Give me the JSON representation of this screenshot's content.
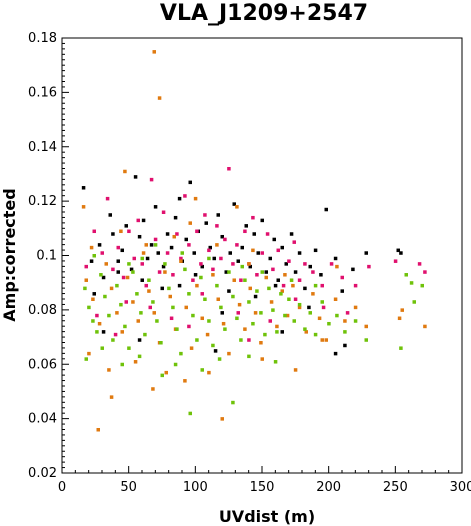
{
  "chart_data": {
    "type": "scatter",
    "title": "VLA_J1209+2547",
    "xlabel": "UVdist (m)",
    "ylabel": "Amp:corrected",
    "xlim": [
      0,
      300
    ],
    "ylim": [
      0.02,
      0.18
    ],
    "x_ticks": [
      "0",
      "50",
      "100",
      "150",
      "200",
      "250",
      "300"
    ],
    "y_ticks": [
      "0.02",
      "0.04",
      "0.06",
      "0.08",
      "0.1",
      "0.12",
      "0.14",
      "0.16",
      "0.18"
    ],
    "grid": false,
    "legend": "none",
    "colors": [
      "#000000",
      "#e0106e",
      "#e07a10",
      "#6fc20a"
    ],
    "series": [
      {
        "color": "#000000",
        "points": [
          [
            16,
            0.125
          ],
          [
            22,
            0.098
          ],
          [
            28,
            0.104
          ],
          [
            31,
            0.092
          ],
          [
            36,
            0.115
          ],
          [
            38,
            0.108
          ],
          [
            42,
            0.098
          ],
          [
            45,
            0.102
          ],
          [
            48,
            0.111
          ],
          [
            52,
            0.095
          ],
          [
            55,
            0.129
          ],
          [
            58,
            0.107
          ],
          [
            61,
            0.113
          ],
          [
            64,
            0.099
          ],
          [
            67,
            0.104
          ],
          [
            70,
            0.118
          ],
          [
            72,
            0.101
          ],
          [
            76,
            0.096
          ],
          [
            79,
            0.108
          ],
          [
            82,
            0.103
          ],
          [
            85,
            0.114
          ],
          [
            88,
            0.121
          ],
          [
            90,
            0.098
          ],
          [
            93,
            0.106
          ],
          [
            96,
            0.127
          ],
          [
            99,
            0.101
          ],
          [
            102,
            0.109
          ],
          [
            105,
            0.096
          ],
          [
            108,
            0.112
          ],
          [
            111,
            0.103
          ],
          [
            114,
            0.099
          ],
          [
            117,
            0.115
          ],
          [
            120,
            0.107
          ],
          [
            123,
            0.094
          ],
          [
            126,
            0.101
          ],
          [
            129,
            0.119
          ],
          [
            132,
            0.098
          ],
          [
            135,
            0.103
          ],
          [
            138,
            0.111
          ],
          [
            141,
            0.096
          ],
          [
            144,
            0.108
          ],
          [
            147,
            0.101
          ],
          [
            150,
            0.113
          ],
          [
            153,
            0.094
          ],
          [
            156,
            0.099
          ],
          [
            159,
            0.106
          ],
          [
            162,
            0.091
          ],
          [
            165,
            0.103
          ],
          [
            168,
            0.097
          ],
          [
            172,
            0.108
          ],
          [
            175,
            0.094
          ],
          [
            178,
            0.101
          ],
          [
            182,
            0.088
          ],
          [
            186,
            0.096
          ],
          [
            190,
            0.102
          ],
          [
            194,
            0.093
          ],
          [
            198,
            0.117
          ],
          [
            205,
            0.099
          ],
          [
            210,
            0.087
          ],
          [
            218,
            0.095
          ],
          [
            228,
            0.101
          ],
          [
            252,
            0.102
          ],
          [
            254,
            0.101
          ],
          [
            31,
            0.072
          ],
          [
            58,
            0.069
          ],
          [
            120,
            0.079
          ],
          [
            145,
            0.085
          ],
          [
            185,
            0.081
          ],
          [
            212,
            0.067
          ],
          [
            115,
            0.065
          ],
          [
            60,
            0.091
          ],
          [
            75,
            0.088
          ],
          [
            100,
            0.093
          ],
          [
            125,
            0.087
          ],
          [
            160,
            0.089
          ],
          [
            205,
            0.064
          ],
          [
            24,
            0.086
          ],
          [
            42,
            0.094
          ],
          [
            88,
            0.089
          ],
          [
            165,
            0.072
          ]
        ]
      },
      {
        "color": "#e0106e",
        "points": [
          [
            18,
            0.096
          ],
          [
            24,
            0.109
          ],
          [
            30,
            0.101
          ],
          [
            34,
            0.121
          ],
          [
            38,
            0.095
          ],
          [
            42,
            0.103
          ],
          [
            46,
            0.092
          ],
          [
            50,
            0.109
          ],
          [
            54,
            0.099
          ],
          [
            57,
            0.113
          ],
          [
            60,
            0.097
          ],
          [
            63,
            0.089
          ],
          [
            67,
            0.128
          ],
          [
            70,
            0.106
          ],
          [
            73,
            0.094
          ],
          [
            76,
            0.116
          ],
          [
            79,
            0.101
          ],
          [
            83,
            0.093
          ],
          [
            86,
            0.108
          ],
          [
            89,
            0.099
          ],
          [
            92,
            0.122
          ],
          [
            95,
            0.104
          ],
          [
            98,
            0.091
          ],
          [
            101,
            0.109
          ],
          [
            104,
            0.097
          ],
          [
            107,
            0.115
          ],
          [
            110,
            0.102
          ],
          [
            113,
            0.095
          ],
          [
            116,
            0.111
          ],
          [
            119,
            0.099
          ],
          [
            122,
            0.106
          ],
          [
            125,
            0.132
          ],
          [
            128,
            0.097
          ],
          [
            131,
            0.104
          ],
          [
            134,
            0.091
          ],
          [
            137,
            0.109
          ],
          [
            140,
            0.097
          ],
          [
            143,
            0.114
          ],
          [
            146,
            0.093
          ],
          [
            150,
            0.101
          ],
          [
            154,
            0.108
          ],
          [
            158,
            0.095
          ],
          [
            162,
            0.102
          ],
          [
            166,
            0.089
          ],
          [
            170,
            0.098
          ],
          [
            174,
            0.105
          ],
          [
            178,
            0.091
          ],
          [
            182,
            0.097
          ],
          [
            188,
            0.094
          ],
          [
            195,
            0.089
          ],
          [
            202,
            0.097
          ],
          [
            210,
            0.092
          ],
          [
            220,
            0.089
          ],
          [
            230,
            0.096
          ],
          [
            26,
            0.078
          ],
          [
            48,
            0.083
          ],
          [
            66,
            0.081
          ],
          [
            82,
            0.077
          ],
          [
            105,
            0.086
          ],
          [
            132,
            0.079
          ],
          [
            156,
            0.076
          ],
          [
            175,
            0.084
          ],
          [
            196,
            0.081
          ],
          [
            214,
            0.079
          ],
          [
            250,
            0.098
          ],
          [
            268,
            0.097
          ],
          [
            272,
            0.094
          ],
          [
            40,
            0.071
          ],
          [
            95,
            0.074
          ],
          [
            140,
            0.069
          ]
        ]
      },
      {
        "color": "#e07a10",
        "points": [
          [
            69,
            0.175
          ],
          [
            73,
            0.158
          ],
          [
            27,
            0.036
          ],
          [
            37,
            0.048
          ],
          [
            68,
            0.051
          ],
          [
            120,
            0.04
          ],
          [
            16,
            0.118
          ],
          [
            47,
            0.131
          ],
          [
            100,
            0.121
          ],
          [
            131,
            0.118
          ],
          [
            18,
            0.091
          ],
          [
            23,
            0.084
          ],
          [
            28,
            0.075
          ],
          [
            33,
            0.097
          ],
          [
            37,
            0.088
          ],
          [
            41,
            0.079
          ],
          [
            45,
            0.072
          ],
          [
            49,
            0.092
          ],
          [
            53,
            0.083
          ],
          [
            57,
            0.076
          ],
          [
            61,
            0.101
          ],
          [
            65,
            0.087
          ],
          [
            69,
            0.079
          ],
          [
            73,
            0.068
          ],
          [
            77,
            0.094
          ],
          [
            81,
            0.085
          ],
          [
            85,
            0.073
          ],
          [
            89,
            0.098
          ],
          [
            93,
            0.081
          ],
          [
            97,
            0.066
          ],
          [
            101,
            0.089
          ],
          [
            105,
            0.077
          ],
          [
            109,
            0.071
          ],
          [
            113,
            0.093
          ],
          [
            117,
            0.084
          ],
          [
            121,
            0.075
          ],
          [
            125,
            0.064
          ],
          [
            129,
            0.091
          ],
          [
            133,
            0.082
          ],
          [
            137,
            0.073
          ],
          [
            141,
            0.088
          ],
          [
            145,
            0.079
          ],
          [
            149,
            0.068
          ],
          [
            153,
            0.092
          ],
          [
            157,
            0.083
          ],
          [
            161,
            0.074
          ],
          [
            165,
            0.087
          ],
          [
            169,
            0.078
          ],
          [
            173,
            0.089
          ],
          [
            178,
            0.081
          ],
          [
            183,
            0.072
          ],
          [
            188,
            0.086
          ],
          [
            193,
            0.077
          ],
          [
            198,
            0.069
          ],
          [
            205,
            0.084
          ],
          [
            212,
            0.076
          ],
          [
            220,
            0.081
          ],
          [
            228,
            0.074
          ],
          [
            253,
            0.077
          ],
          [
            255,
            0.08
          ],
          [
            272,
            0.074
          ],
          [
            20,
            0.064
          ],
          [
            35,
            0.058
          ],
          [
            55,
            0.061
          ],
          [
            78,
            0.057
          ],
          [
            92,
            0.054
          ],
          [
            110,
            0.057
          ],
          [
            150,
            0.062
          ],
          [
            175,
            0.058
          ],
          [
            195,
            0.069
          ],
          [
            63,
            0.104
          ],
          [
            84,
            0.107
          ],
          [
            116,
            0.104
          ],
          [
            143,
            0.102
          ],
          [
            22,
            0.103
          ],
          [
            44,
            0.109
          ],
          [
            96,
            0.112
          ],
          [
            140,
            0.097
          ],
          [
            167,
            0.093
          ],
          [
            206,
            0.096
          ]
        ]
      },
      {
        "color": "#6fc20a",
        "points": [
          [
            17,
            0.088
          ],
          [
            20,
            0.081
          ],
          [
            23,
            0.076
          ],
          [
            26,
            0.072
          ],
          [
            29,
            0.093
          ],
          [
            32,
            0.085
          ],
          [
            35,
            0.078
          ],
          [
            38,
            0.069
          ],
          [
            41,
            0.089
          ],
          [
            44,
            0.082
          ],
          [
            47,
            0.074
          ],
          [
            50,
            0.066
          ],
          [
            53,
            0.094
          ],
          [
            56,
            0.086
          ],
          [
            59,
            0.079
          ],
          [
            62,
            0.071
          ],
          [
            65,
            0.091
          ],
          [
            68,
            0.083
          ],
          [
            71,
            0.076
          ],
          [
            74,
            0.068
          ],
          [
            77,
            0.097
          ],
          [
            80,
            0.088
          ],
          [
            83,
            0.081
          ],
          [
            86,
            0.073
          ],
          [
            89,
            0.064
          ],
          [
            92,
            0.095
          ],
          [
            95,
            0.086
          ],
          [
            98,
            0.078
          ],
          [
            101,
            0.069
          ],
          [
            104,
            0.092
          ],
          [
            107,
            0.084
          ],
          [
            110,
            0.076
          ],
          [
            113,
            0.067
          ],
          [
            116,
            0.089
          ],
          [
            119,
            0.081
          ],
          [
            122,
            0.073
          ],
          [
            125,
            0.094
          ],
          [
            128,
            0.085
          ],
          [
            131,
            0.077
          ],
          [
            134,
            0.069
          ],
          [
            137,
            0.091
          ],
          [
            140,
            0.083
          ],
          [
            143,
            0.075
          ],
          [
            146,
            0.087
          ],
          [
            149,
            0.079
          ],
          [
            152,
            0.071
          ],
          [
            155,
            0.088
          ],
          [
            158,
            0.08
          ],
          [
            161,
            0.072
          ],
          [
            164,
            0.086
          ],
          [
            167,
            0.078
          ],
          [
            170,
            0.084
          ],
          [
            174,
            0.076
          ],
          [
            178,
            0.082
          ],
          [
            182,
            0.073
          ],
          [
            186,
            0.079
          ],
          [
            190,
            0.071
          ],
          [
            195,
            0.083
          ],
          [
            200,
            0.075
          ],
          [
            206,
            0.078
          ],
          [
            212,
            0.072
          ],
          [
            220,
            0.076
          ],
          [
            228,
            0.069
          ],
          [
            254,
            0.066
          ],
          [
            258,
            0.093
          ],
          [
            262,
            0.09
          ],
          [
            264,
            0.083
          ],
          [
            270,
            0.089
          ],
          [
            96,
            0.042
          ],
          [
            128,
            0.046
          ],
          [
            75,
            0.056
          ],
          [
            105,
            0.058
          ],
          [
            140,
            0.063
          ],
          [
            160,
            0.061
          ],
          [
            18,
            0.062
          ],
          [
            30,
            0.066
          ],
          [
            45,
            0.06
          ],
          [
            58,
            0.063
          ],
          [
            85,
            0.06
          ],
          [
            118,
            0.062
          ],
          [
            70,
            0.104
          ],
          [
            90,
            0.101
          ],
          [
            110,
            0.099
          ],
          [
            60,
            0.099
          ],
          [
            135,
            0.096
          ],
          [
            24,
            0.1
          ],
          [
            50,
            0.097
          ],
          [
            150,
            0.094
          ],
          [
            172,
            0.091
          ],
          [
            190,
            0.089
          ]
        ]
      }
    ]
  }
}
